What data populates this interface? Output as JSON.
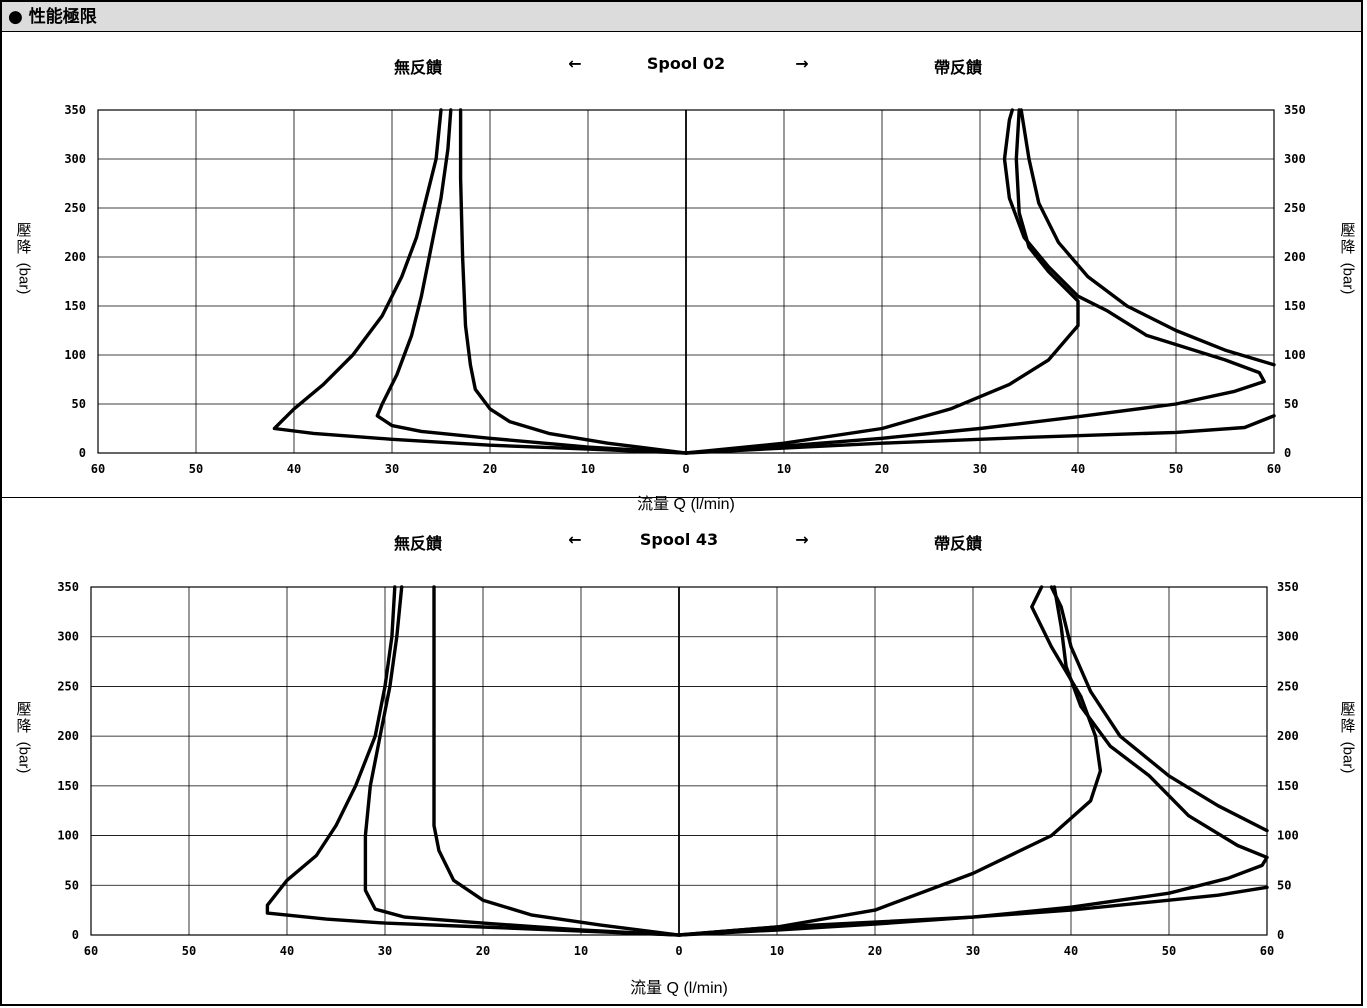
{
  "page_title": "● 性能極限",
  "chart_data": [
    {
      "type": "line",
      "panel_label_left": "無反饋",
      "arrow_left": "←",
      "spool_label": "Spool 02",
      "arrow_right": "→",
      "panel_label_right": "帶反饋",
      "xlabel": "流量 Q (l/min)",
      "ylabel_cjk": "壓降",
      "ylabel_unit": "(bar)",
      "x_ticks": [
        60,
        50,
        40,
        30,
        20,
        10,
        0,
        10,
        20,
        30,
        40,
        50,
        60
      ],
      "y_ticks": [
        0,
        50,
        100,
        150,
        200,
        250,
        300,
        350
      ],
      "xlim": [
        -60,
        60
      ],
      "ylim": [
        0,
        350
      ],
      "grid": true,
      "series": [
        {
          "side": "left",
          "points": [
            [
              0,
              0
            ],
            [
              -10,
              4
            ],
            [
              -20,
              8
            ],
            [
              -30,
              14
            ],
            [
              -38,
              20
            ],
            [
              -42,
              25
            ],
            [
              -41.5,
              30
            ],
            [
              -40,
              45
            ],
            [
              -37,
              70
            ],
            [
              -34,
              100
            ],
            [
              -31,
              140
            ],
            [
              -29,
              180
            ],
            [
              -27.5,
              220
            ],
            [
              -26.5,
              260
            ],
            [
              -25.5,
              300
            ],
            [
              -25,
              350
            ]
          ]
        },
        {
          "side": "left",
          "points": [
            [
              0,
              0
            ],
            [
              -10,
              6
            ],
            [
              -20,
              15
            ],
            [
              -27,
              22
            ],
            [
              -30,
              28
            ],
            [
              -31.5,
              38
            ],
            [
              -31,
              50
            ],
            [
              -29.5,
              80
            ],
            [
              -28,
              120
            ],
            [
              -27,
              160
            ],
            [
              -26,
              210
            ],
            [
              -25,
              260
            ],
            [
              -24.3,
              310
            ],
            [
              -24,
              350
            ]
          ]
        },
        {
          "side": "left",
          "points": [
            [
              0,
              0
            ],
            [
              -8,
              10
            ],
            [
              -14,
              20
            ],
            [
              -18,
              32
            ],
            [
              -20,
              45
            ],
            [
              -21.5,
              65
            ],
            [
              -22,
              90
            ],
            [
              -22.5,
              130
            ],
            [
              -22.8,
              200
            ],
            [
              -23,
              280
            ],
            [
              -23,
              350
            ]
          ]
        },
        {
          "side": "right",
          "points": [
            [
              0,
              0
            ],
            [
              10,
              5
            ],
            [
              20,
              10
            ],
            [
              35,
              16
            ],
            [
              50,
              21
            ],
            [
              57,
              26
            ],
            [
              60,
              38
            ]
          ]
        },
        {
          "side": "right",
          "points": [
            [
              0,
              0
            ],
            [
              10,
              7
            ],
            [
              20,
              15
            ],
            [
              30,
              25
            ],
            [
              40,
              37
            ],
            [
              50,
              50
            ],
            [
              56,
              63
            ],
            [
              59,
              73
            ],
            [
              58.5,
              82
            ],
            [
              55,
              95
            ],
            [
              47,
              120
            ],
            [
              43,
              145
            ],
            [
              40,
              160
            ],
            [
              37,
              190
            ],
            [
              34.5,
              220
            ],
            [
              33,
              260
            ],
            [
              32.5,
              300
            ],
            [
              33,
              340
            ],
            [
              33.3,
              350
            ]
          ]
        },
        {
          "side": "right",
          "points": [
            [
              0,
              0
            ],
            [
              10,
              10
            ],
            [
              20,
              25
            ],
            [
              27,
              45
            ],
            [
              33,
              70
            ],
            [
              37,
              95
            ],
            [
              40,
              130
            ],
            [
              40,
              155
            ],
            [
              37,
              185
            ],
            [
              35,
              210
            ],
            [
              34,
              245
            ],
            [
              33.7,
              300
            ],
            [
              34,
              350
            ]
          ]
        },
        {
          "side": "right",
          "points": [
            [
              60,
              90
            ],
            [
              55,
              105
            ],
            [
              50,
              125
            ],
            [
              45,
              150
            ],
            [
              41,
              180
            ],
            [
              38,
              215
            ],
            [
              36,
              255
            ],
            [
              35,
              300
            ],
            [
              34.2,
              350
            ]
          ]
        }
      ]
    },
    {
      "type": "line",
      "panel_label_left": "無反饋",
      "arrow_left": "←",
      "spool_label": "Spool 43",
      "arrow_right": "→",
      "panel_label_right": "帶反饋",
      "xlabel": "流量 Q (l/min)",
      "ylabel_cjk": "壓降",
      "ylabel_unit": "(bar)",
      "x_ticks": [
        60,
        50,
        40,
        30,
        20,
        10,
        0,
        10,
        20,
        30,
        40,
        50,
        60
      ],
      "y_ticks": [
        0,
        50,
        100,
        150,
        200,
        250,
        300,
        350
      ],
      "xlim": [
        -60,
        60
      ],
      "ylim": [
        0,
        350
      ],
      "grid": true,
      "series": [
        {
          "side": "left",
          "points": [
            [
              0,
              0
            ],
            [
              -10,
              4
            ],
            [
              -20,
              8
            ],
            [
              -30,
              12
            ],
            [
              -36,
              16
            ],
            [
              -42,
              22
            ],
            [
              -42,
              30
            ],
            [
              -40,
              55
            ],
            [
              -37,
              80
            ],
            [
              -35,
              110
            ],
            [
              -33,
              150
            ],
            [
              -31,
              200
            ],
            [
              -30,
              250
            ],
            [
              -29.3,
              300
            ],
            [
              -29,
              350
            ]
          ]
        },
        {
          "side": "left",
          "points": [
            [
              0,
              0
            ],
            [
              -10,
              5
            ],
            [
              -20,
              12
            ],
            [
              -28,
              18
            ],
            [
              -31,
              26
            ],
            [
              -32,
              45
            ],
            [
              -32,
              100
            ],
            [
              -31.5,
              150
            ],
            [
              -30.5,
              200
            ],
            [
              -29.5,
              250
            ],
            [
              -28.8,
              300
            ],
            [
              -28.3,
              350
            ]
          ]
        },
        {
          "side": "left",
          "points": [
            [
              0,
              0
            ],
            [
              -8,
              10
            ],
            [
              -15,
              20
            ],
            [
              -20,
              35
            ],
            [
              -23,
              55
            ],
            [
              -24.5,
              85
            ],
            [
              -25,
              110
            ],
            [
              -25,
              140
            ],
            [
              -25,
              200
            ],
            [
              -25,
              280
            ],
            [
              -25,
              350
            ]
          ]
        },
        {
          "side": "right",
          "points": [
            [
              0,
              0
            ],
            [
              10,
              8
            ],
            [
              20,
              13
            ],
            [
              30,
              18
            ],
            [
              40,
              25
            ],
            [
              50,
              35
            ],
            [
              55,
              40
            ],
            [
              60,
              48
            ]
          ]
        },
        {
          "side": "right",
          "points": [
            [
              0,
              0
            ],
            [
              10,
              5
            ],
            [
              20,
              11
            ],
            [
              30,
              18
            ],
            [
              40,
              28
            ],
            [
              50,
              42
            ],
            [
              56,
              57
            ],
            [
              59.5,
              70
            ],
            [
              60,
              78
            ],
            [
              57,
              90
            ],
            [
              52,
              120
            ],
            [
              48,
              160
            ],
            [
              44,
              190
            ],
            [
              41,
              230
            ],
            [
              39.5,
              270
            ],
            [
              39,
              310
            ],
            [
              38.3,
              350
            ]
          ]
        },
        {
          "side": "right",
          "points": [
            [
              0,
              0
            ],
            [
              10,
              8
            ],
            [
              20,
              25
            ],
            [
              30,
              62
            ],
            [
              38,
              100
            ],
            [
              42,
              135
            ],
            [
              43,
              165
            ],
            [
              42.5,
              200
            ],
            [
              41,
              240
            ],
            [
              38,
              290
            ],
            [
              36,
              330
            ],
            [
              37,
              350
            ]
          ]
        },
        {
          "side": "right",
          "points": [
            [
              60,
              105
            ],
            [
              55,
              130
            ],
            [
              50,
              160
            ],
            [
              45,
              200
            ],
            [
              42,
              245
            ],
            [
              40,
              290
            ],
            [
              39,
              330
            ],
            [
              38,
              350
            ]
          ]
        }
      ]
    }
  ]
}
